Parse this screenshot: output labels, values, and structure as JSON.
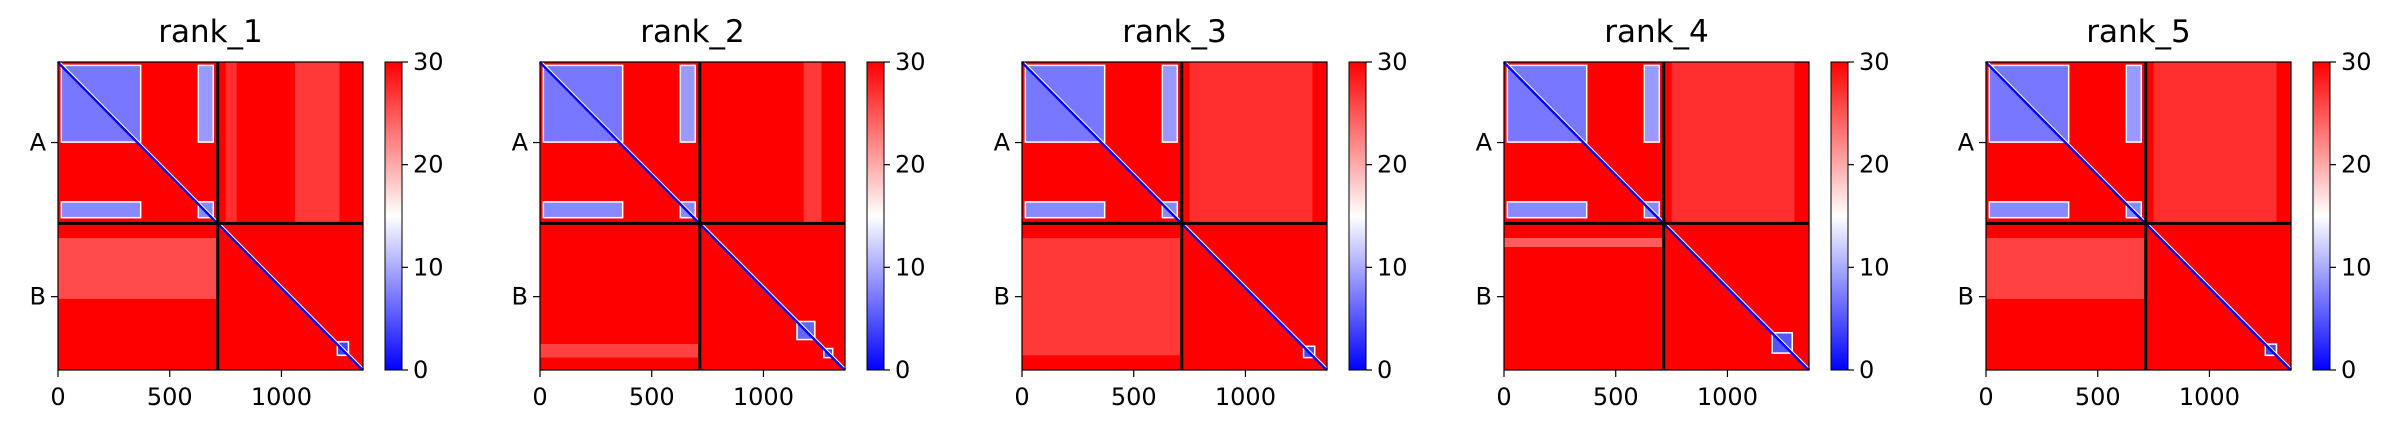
{
  "chart_data": {
    "type": "heatmap",
    "description": "Five predicted aligned error (PAE) matrices, one per rank, for a two-chain complex (chain A residues 0-~715, chain B ~715-~1365). Colormap bwr clipped to [0, 30].",
    "colormap": {
      "name": "bwr",
      "low_color": "#0000ff",
      "mid_color": "#ffffff",
      "high_color": "#ff0000"
    },
    "colorbar": {
      "vmin": 0,
      "vmax": 30,
      "ticks": [
        "0",
        "10",
        "20",
        "30"
      ]
    },
    "x_ticks": [
      "0",
      "500",
      "1000"
    ],
    "x_tick_values": [
      0,
      500,
      1000
    ],
    "y_tick_labels": [
      "A",
      "B"
    ],
    "xlim": [
      0,
      1365
    ],
    "chain_boundary": 715,
    "chain_a_center": 357,
    "chain_b_center": 1040,
    "panels": [
      {
        "title": "rank_1",
        "low_error_blocks": [
          {
            "x": [
              15,
              370
            ],
            "y": [
              15,
              355
            ],
            "value": 7
          },
          {
            "x": [
              15,
              370
            ],
            "y": [
              620,
              690
            ],
            "value": 8
          },
          {
            "x": [
              628,
              695
            ],
            "y": [
              15,
              355
            ],
            "value": 9
          },
          {
            "x": [
              628,
              695
            ],
            "y": [
              620,
              690
            ],
            "value": 8
          },
          {
            "x": [
              1250,
              1300
            ],
            "y": [
              1240,
              1300
            ],
            "value": 4
          }
        ],
        "streaks": [
          {
            "axis": "x",
            "pos": [
              1060,
              1260
            ],
            "range": [
              0,
              715
            ],
            "value": 24
          },
          {
            "axis": "x",
            "pos": [
              750,
              800
            ],
            "range": [
              0,
              715
            ],
            "value": 25
          },
          {
            "axis": "y",
            "pos": [
              780,
              1050
            ],
            "range": [
              0,
              715
            ],
            "value": 22
          }
        ]
      },
      {
        "title": "rank_2",
        "low_error_blocks": [
          {
            "x": [
              15,
              370
            ],
            "y": [
              15,
              355
            ],
            "value": 7
          },
          {
            "x": [
              15,
              370
            ],
            "y": [
              620,
              690
            ],
            "value": 8
          },
          {
            "x": [
              628,
              695
            ],
            "y": [
              15,
              355
            ],
            "value": 9
          },
          {
            "x": [
              628,
              695
            ],
            "y": [
              620,
              690
            ],
            "value": 8
          },
          {
            "x": [
              1150,
              1230
            ],
            "y": [
              1150,
              1230
            ],
            "value": 6
          },
          {
            "x": [
              1270,
              1310
            ],
            "y": [
              1270,
              1310
            ],
            "value": 4
          }
        ],
        "streaks": [
          {
            "axis": "x",
            "pos": [
              1180,
              1260
            ],
            "range": [
              0,
              715
            ],
            "value": 24
          },
          {
            "axis": "y",
            "pos": [
              1250,
              1310
            ],
            "range": [
              0,
              715
            ],
            "value": 23
          }
        ]
      },
      {
        "title": "rank_3",
        "low_error_blocks": [
          {
            "x": [
              15,
              370
            ],
            "y": [
              15,
              355
            ],
            "value": 7
          },
          {
            "x": [
              15,
              370
            ],
            "y": [
              620,
              690
            ],
            "value": 8
          },
          {
            "x": [
              628,
              695
            ],
            "y": [
              15,
              355
            ],
            "value": 9
          },
          {
            "x": [
              628,
              695
            ],
            "y": [
              620,
              690
            ],
            "value": 8
          },
          {
            "x": [
              1260,
              1310
            ],
            "y": [
              1260,
              1310
            ],
            "value": 4
          }
        ],
        "streaks": [
          {
            "axis": "x",
            "pos": [
              750,
              1300
            ],
            "range": [
              0,
              715
            ],
            "value": 25
          },
          {
            "axis": "y",
            "pos": [
              780,
              1300
            ],
            "range": [
              0,
              715
            ],
            "value": 24
          }
        ]
      },
      {
        "title": "rank_4",
        "low_error_blocks": [
          {
            "x": [
              15,
              370
            ],
            "y": [
              15,
              355
            ],
            "value": 7
          },
          {
            "x": [
              15,
              370
            ],
            "y": [
              620,
              690
            ],
            "value": 8
          },
          {
            "x": [
              628,
              695
            ],
            "y": [
              15,
              355
            ],
            "value": 9
          },
          {
            "x": [
              628,
              695
            ],
            "y": [
              620,
              690
            ],
            "value": 8
          },
          {
            "x": [
              1200,
              1290
            ],
            "y": [
              1200,
              1290
            ],
            "value": 5
          }
        ],
        "streaks": [
          {
            "axis": "x",
            "pos": [
              750,
              1300
            ],
            "range": [
              0,
              715
            ],
            "value": 25
          },
          {
            "axis": "y",
            "pos": [
              780,
              820
            ],
            "range": [
              0,
              715
            ],
            "value": 20
          }
        ]
      },
      {
        "title": "rank_5",
        "low_error_blocks": [
          {
            "x": [
              15,
              370
            ],
            "y": [
              15,
              355
            ],
            "value": 7
          },
          {
            "x": [
              15,
              370
            ],
            "y": [
              620,
              690
            ],
            "value": 8
          },
          {
            "x": [
              628,
              695
            ],
            "y": [
              15,
              355
            ],
            "value": 9
          },
          {
            "x": [
              628,
              695
            ],
            "y": [
              620,
              690
            ],
            "value": 8
          },
          {
            "x": [
              1250,
              1300
            ],
            "y": [
              1250,
              1300
            ],
            "value": 4
          }
        ],
        "streaks": [
          {
            "axis": "x",
            "pos": [
              750,
              1300
            ],
            "range": [
              0,
              715
            ],
            "value": 25
          },
          {
            "axis": "y",
            "pos": [
              780,
              1050
            ],
            "range": [
              0,
              715
            ],
            "value": 23
          }
        ]
      }
    ]
  }
}
